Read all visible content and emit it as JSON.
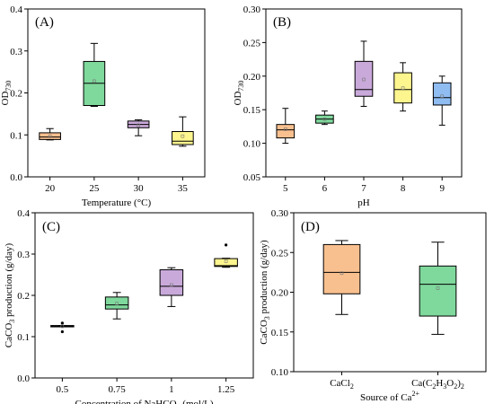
{
  "chart_data": [
    {
      "type": "box",
      "panel_label": "(A)",
      "xlabel": "Temperature (°C)",
      "ylabel": "OD",
      "ylabel_sub": "730",
      "ylim": [
        0,
        0.4
      ],
      "yticks": [
        "0.0",
        "0.1",
        "0.2",
        "0.3",
        "0.4"
      ],
      "yticks_values": [
        0,
        0.1,
        0.2,
        0.3,
        0.4
      ],
      "categories": [
        "20",
        "25",
        "30",
        "35"
      ],
      "colors": [
        "#F9C08F",
        "#7FD89C",
        "#C9A9DA",
        "#FDF58E"
      ],
      "boxes": [
        {
          "min": 0.088,
          "q1": 0.089,
          "median": 0.095,
          "q3": 0.105,
          "max": 0.115,
          "mean": 0.097
        },
        {
          "min": 0.168,
          "q1": 0.17,
          "median": 0.223,
          "q3": 0.275,
          "max": 0.318,
          "mean": 0.228
        },
        {
          "min": 0.098,
          "q1": 0.117,
          "median": 0.125,
          "q3": 0.133,
          "max": 0.136,
          "mean": 0.123
        },
        {
          "min": 0.073,
          "q1": 0.077,
          "median": 0.085,
          "q3": 0.108,
          "max": 0.143,
          "mean": 0.097
        }
      ]
    },
    {
      "type": "box",
      "panel_label": "(B)",
      "xlabel": "pH",
      "ylabel": "OD",
      "ylabel_sub": "730",
      "ylim": [
        0.05,
        0.3
      ],
      "yticks": [
        "0.05",
        "0.10",
        "0.15",
        "0.20",
        "0.25",
        "0.30"
      ],
      "yticks_values": [
        0.05,
        0.1,
        0.15,
        0.2,
        0.25,
        0.3
      ],
      "categories": [
        "5",
        "6",
        "7",
        "8",
        "9"
      ],
      "colors": [
        "#F9C08F",
        "#7FD89C",
        "#C9A9DA",
        "#FDF58E",
        "#8FBDF2"
      ],
      "boxes": [
        {
          "min": 0.1,
          "q1": 0.108,
          "median": 0.12,
          "q3": 0.128,
          "max": 0.152,
          "mean": 0.121
        },
        {
          "min": 0.128,
          "q1": 0.13,
          "median": 0.136,
          "q3": 0.142,
          "max": 0.148,
          "mean": 0.136
        },
        {
          "min": 0.155,
          "q1": 0.17,
          "median": 0.18,
          "q3": 0.222,
          "max": 0.252,
          "mean": 0.195
        },
        {
          "min": 0.148,
          "q1": 0.16,
          "median": 0.18,
          "q3": 0.205,
          "max": 0.22,
          "mean": 0.182
        },
        {
          "min": 0.127,
          "q1": 0.157,
          "median": 0.168,
          "q3": 0.19,
          "max": 0.2,
          "mean": 0.17
        }
      ]
    },
    {
      "type": "box",
      "panel_label": "(C)",
      "xlabel_parts": [
        "Concentration of NaHCO",
        "3",
        " (mol/L)"
      ],
      "ylabel_parts": [
        "CaCO",
        "3",
        " production (g/day)"
      ],
      "ylim": [
        0,
        0.4
      ],
      "yticks": [
        "0.0",
        "0.1",
        "0.2",
        "0.3",
        "0.4"
      ],
      "yticks_values": [
        0,
        0.1,
        0.2,
        0.3,
        0.4
      ],
      "categories": [
        "0.5",
        "0.75",
        "1",
        "1.25"
      ],
      "colors": [
        "#F9C08F",
        "#7FD89C",
        "#C9A9DA",
        "#FDF58E"
      ],
      "boxes": [
        {
          "min": 0.124,
          "q1": 0.124,
          "median": 0.125,
          "q3": 0.127,
          "max": 0.127,
          "mean": 0.125,
          "outliers": [
            0.133,
            0.112
          ]
        },
        {
          "min": 0.143,
          "q1": 0.167,
          "median": 0.177,
          "q3": 0.196,
          "max": 0.207,
          "mean": 0.18
        },
        {
          "min": 0.173,
          "q1": 0.2,
          "median": 0.222,
          "q3": 0.262,
          "max": 0.267,
          "mean": 0.225
        },
        {
          "min": 0.268,
          "q1": 0.27,
          "median": 0.272,
          "q3": 0.289,
          "max": 0.29,
          "mean": 0.283,
          "outliers": [
            0.322
          ]
        }
      ]
    },
    {
      "type": "box",
      "panel_label": "(D)",
      "xlabel": "Source of Ca",
      "xlabel_sup": "2+",
      "ylabel_parts": [
        "CaCO",
        "3",
        " production (g/day)"
      ],
      "ylim": [
        0.1,
        0.3
      ],
      "yticks": [
        "0.10",
        "0.15",
        "0.20",
        "0.25",
        "0.30"
      ],
      "yticks_values": [
        0.1,
        0.15,
        0.2,
        0.25,
        0.3
      ],
      "categories": [
        "CaCl2",
        "Ca(C2H3O2)2"
      ],
      "category_labels": [
        [
          [
            "CaCl",
            "n"
          ],
          [
            "2",
            "s"
          ]
        ],
        [
          [
            "Ca(C",
            "n"
          ],
          [
            "2",
            "s"
          ],
          [
            "H",
            "n"
          ],
          [
            "3",
            "s"
          ],
          [
            "O",
            "n"
          ],
          [
            "2",
            "s"
          ],
          [
            ")",
            "n"
          ],
          [
            "2",
            "s"
          ]
        ]
      ],
      "colors": [
        "#F9C08F",
        "#7FD89C"
      ],
      "boxes": [
        {
          "min": 0.172,
          "q1": 0.198,
          "median": 0.225,
          "q3": 0.26,
          "max": 0.265,
          "mean": 0.224
        },
        {
          "min": 0.147,
          "q1": 0.17,
          "median": 0.21,
          "q3": 0.233,
          "max": 0.263,
          "mean": 0.205
        }
      ]
    }
  ]
}
